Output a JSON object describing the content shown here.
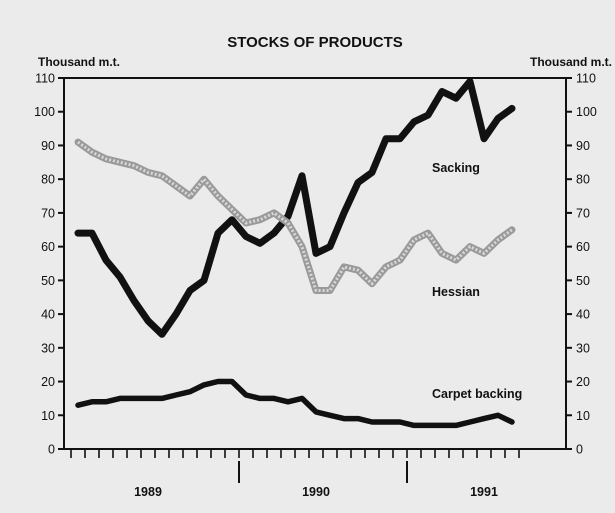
{
  "chart_data": {
    "type": "line",
    "title": "STOCKS OF PRODUCTS",
    "ylabel_left": "Thousand m.t.",
    "ylabel_right": "Thousand m.t.",
    "ylim": [
      0,
      110
    ],
    "yticks": [
      0,
      10,
      20,
      30,
      40,
      50,
      60,
      70,
      80,
      90,
      100,
      110
    ],
    "x_start": "1988-10",
    "months": 31,
    "year_labels": [
      {
        "label": "1989",
        "month_index": 5
      },
      {
        "label": "1990",
        "month_index": 17
      },
      {
        "label": "1991",
        "month_index": 29
      }
    ],
    "year_dividers": [
      11,
      23
    ],
    "grid": false,
    "series": [
      {
        "name": "Sacking",
        "style": "solid",
        "color": "#111111",
        "values": [
          64,
          64,
          56,
          51,
          44,
          38,
          34,
          40,
          47,
          50,
          64,
          68,
          63,
          61,
          64,
          69,
          81,
          58,
          60,
          70,
          79,
          82,
          92,
          92,
          97,
          99,
          106,
          104,
          109,
          92,
          98,
          101
        ]
      },
      {
        "name": "Hessian",
        "style": "hatched",
        "color": "#9a9a9a",
        "values": [
          91,
          88,
          86,
          85,
          84,
          82,
          81,
          78,
          75,
          80,
          75,
          71,
          67,
          68,
          70,
          67,
          60,
          47,
          47,
          54,
          53,
          49,
          54,
          56,
          62,
          64,
          58,
          56,
          60,
          58,
          62,
          65
        ]
      },
      {
        "name": "Carpet backing",
        "style": "solid",
        "color": "#111111",
        "values": [
          13,
          14,
          14,
          15,
          15,
          15,
          15,
          16,
          17,
          19,
          20,
          20,
          16,
          15,
          15,
          14,
          15,
          11,
          10,
          9,
          9,
          8,
          8,
          8,
          7,
          7,
          7,
          7,
          8,
          9,
          10,
          8
        ]
      }
    ],
    "label_positions": {
      "Sacking": "right-upper",
      "Hessian": "right-middle",
      "Carpet backing": "right-lower"
    }
  }
}
